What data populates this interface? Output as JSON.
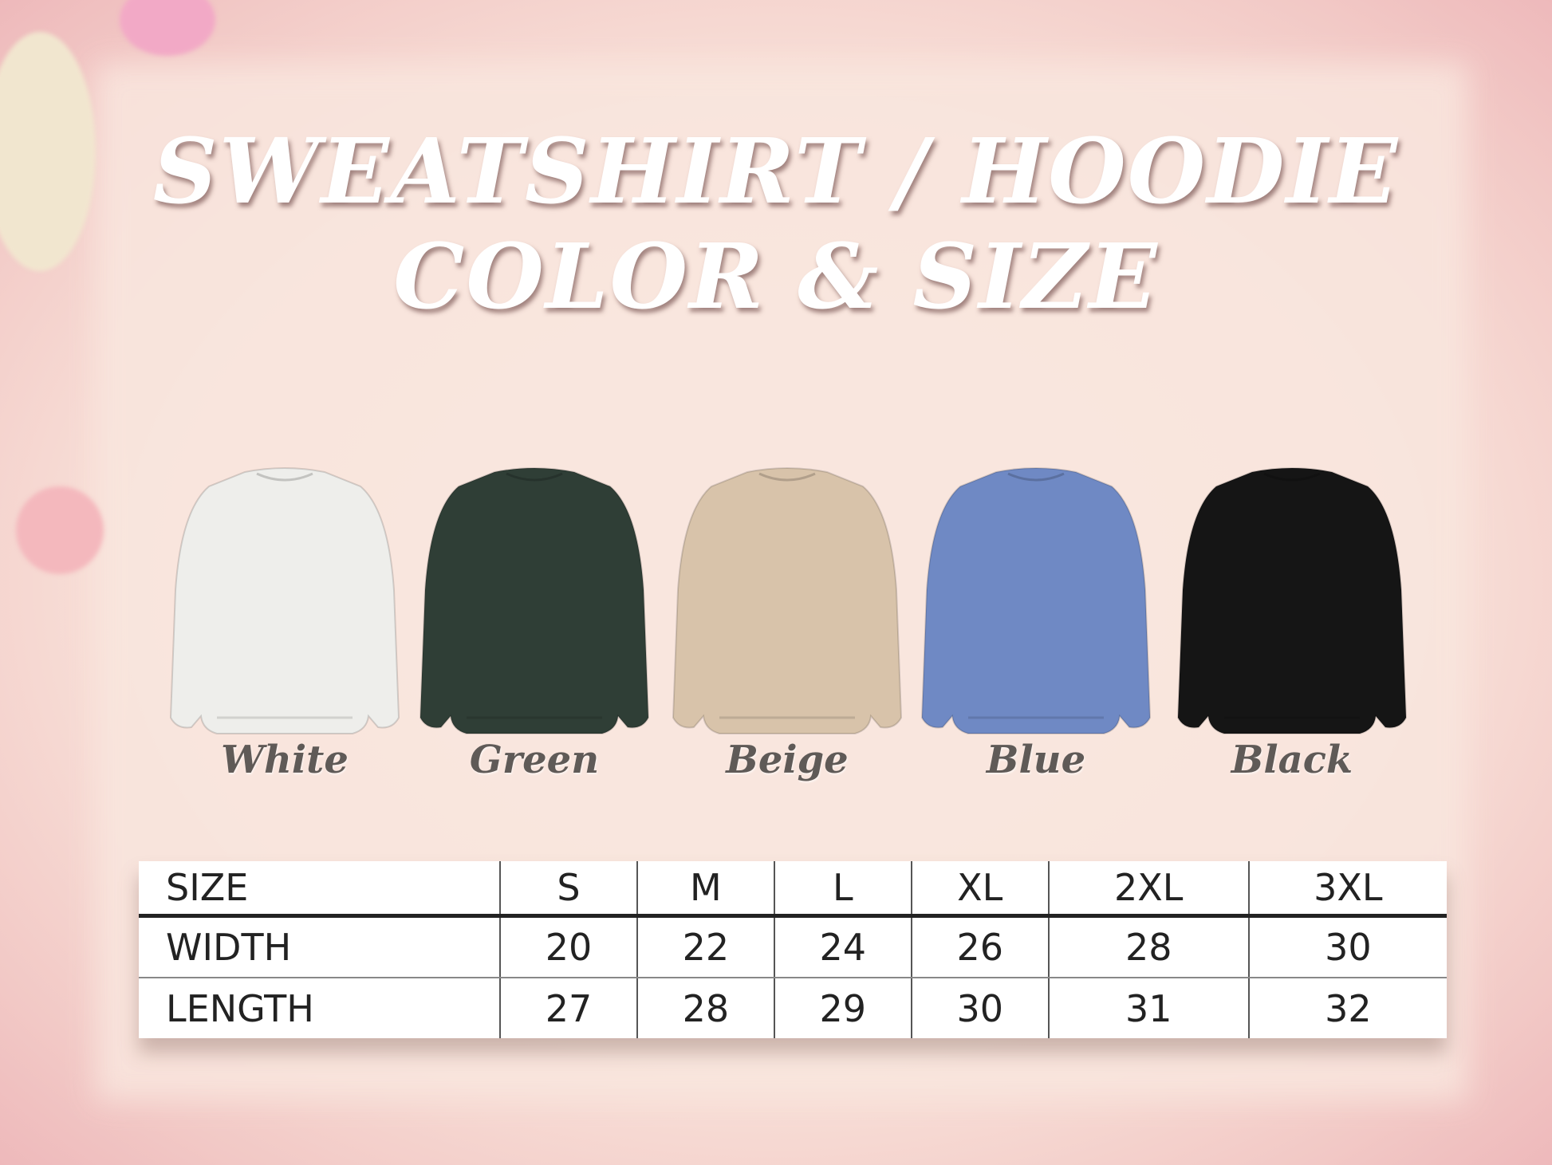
{
  "title": {
    "line1": "SWEATSHIRT / HOODIE",
    "line2": "COLOR & SIZE"
  },
  "colors": [
    {
      "name": "White",
      "hex": "#eeeeeb"
    },
    {
      "name": "Green",
      "hex": "#2f3e36"
    },
    {
      "name": "Beige",
      "hex": "#d8c3aa"
    },
    {
      "name": "Blue",
      "hex": "#6f89c4"
    },
    {
      "name": "Black",
      "hex": "#151515"
    }
  ],
  "size_table": {
    "header": [
      "SIZE",
      "S",
      "M",
      "L",
      "XL",
      "2XL",
      "3XL"
    ],
    "rows": [
      [
        "WIDTH",
        "20",
        "22",
        "24",
        "26",
        "28",
        "30"
      ],
      [
        "LENGTH",
        "27",
        "28",
        "29",
        "30",
        "31",
        "32"
      ]
    ]
  }
}
